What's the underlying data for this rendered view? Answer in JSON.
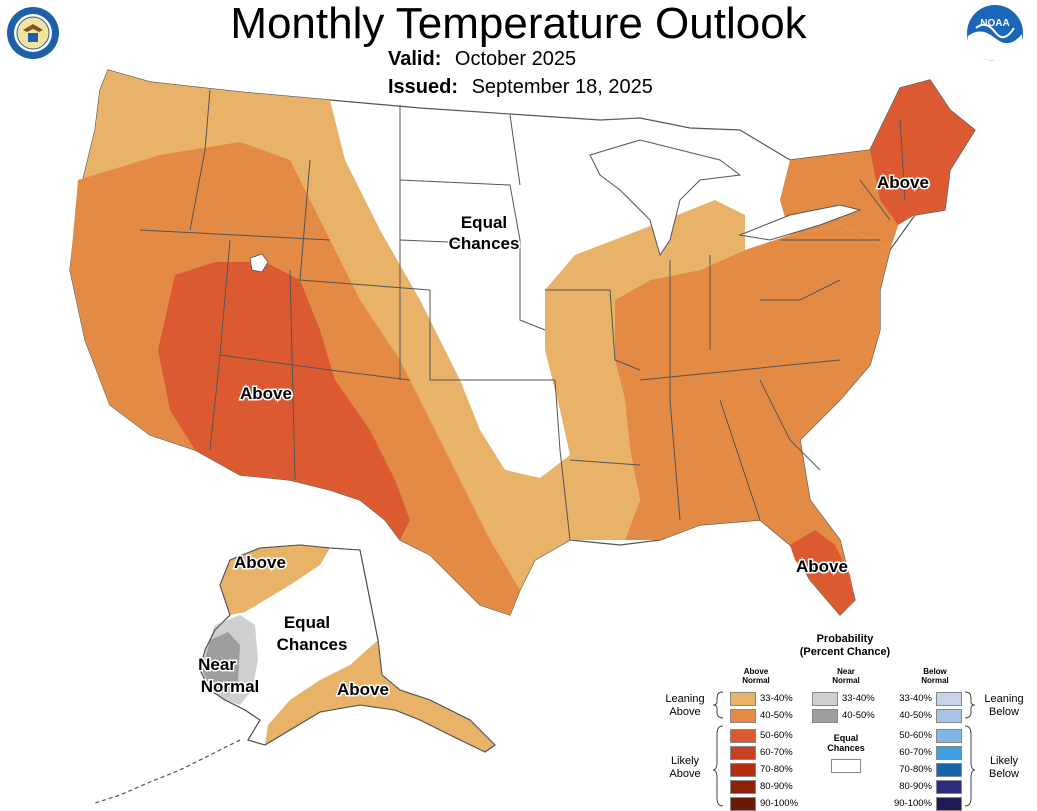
{
  "header": {
    "title": "Monthly Temperature Outlook",
    "valid_label": "Valid:",
    "valid_value": "October 2025",
    "issued_label": "Issued:",
    "issued_value": "September 18, 2025"
  },
  "logos": {
    "left_seal_text": "DEPARTMENT OF COMMERCE · UNITED STATES OF AMERICA",
    "right_logo_text": "NOAA"
  },
  "map_labels": {
    "northeast": "Above",
    "southwest": "Above",
    "plains": [
      "Equal",
      "Chances"
    ],
    "florida": "Above",
    "alaska_north": "Above",
    "alaska_central": [
      "Equal",
      "Chances"
    ],
    "alaska_west": [
      "Near",
      "Normal"
    ],
    "alaska_south": "Above"
  },
  "colors": {
    "above_33_40": "#e8b269",
    "above_40_50": "#e38b45",
    "above_50_60": "#dc5a32",
    "above_60_70": "#c8401f",
    "above_70_80": "#b32d0e",
    "above_80_90": "#8e2208",
    "above_90_100": "#6a1a06",
    "near_33_40": "#cfcfcf",
    "near_40_50": "#9e9e9e",
    "below_33_40": "#c7d3eb",
    "below_40_50": "#a8c2e4",
    "below_50_60": "#7fb7e6",
    "below_60_70": "#3d9ee0",
    "below_70_80": "#1766ad",
    "below_80_90": "#2e2c7e",
    "below_90_100": "#201a55",
    "border": "#555555"
  },
  "legend": {
    "title_line1": "Probability",
    "title_line2": "(Percent Chance)",
    "above_head": [
      "Above",
      "Normal"
    ],
    "near_head": [
      "Near",
      "Normal"
    ],
    "below_head": [
      "Below",
      "Normal"
    ],
    "above_ranges": [
      "33-40%",
      "40-50%",
      "50-60%",
      "60-70%",
      "70-80%",
      "80-90%",
      "90-100%"
    ],
    "near_ranges": [
      "33-40%",
      "40-50%"
    ],
    "below_ranges": [
      "33-40%",
      "40-50%",
      "50-60%",
      "60-70%",
      "70-80%",
      "80-90%",
      "90-100%"
    ],
    "leaning_above": [
      "Leaning",
      "Above"
    ],
    "likely_above": [
      "Likely",
      "Above"
    ],
    "leaning_below": [
      "Leaning",
      "Below"
    ],
    "likely_below": [
      "Likely",
      "Below"
    ],
    "equal_chances": [
      "Equal",
      "Chances"
    ]
  }
}
